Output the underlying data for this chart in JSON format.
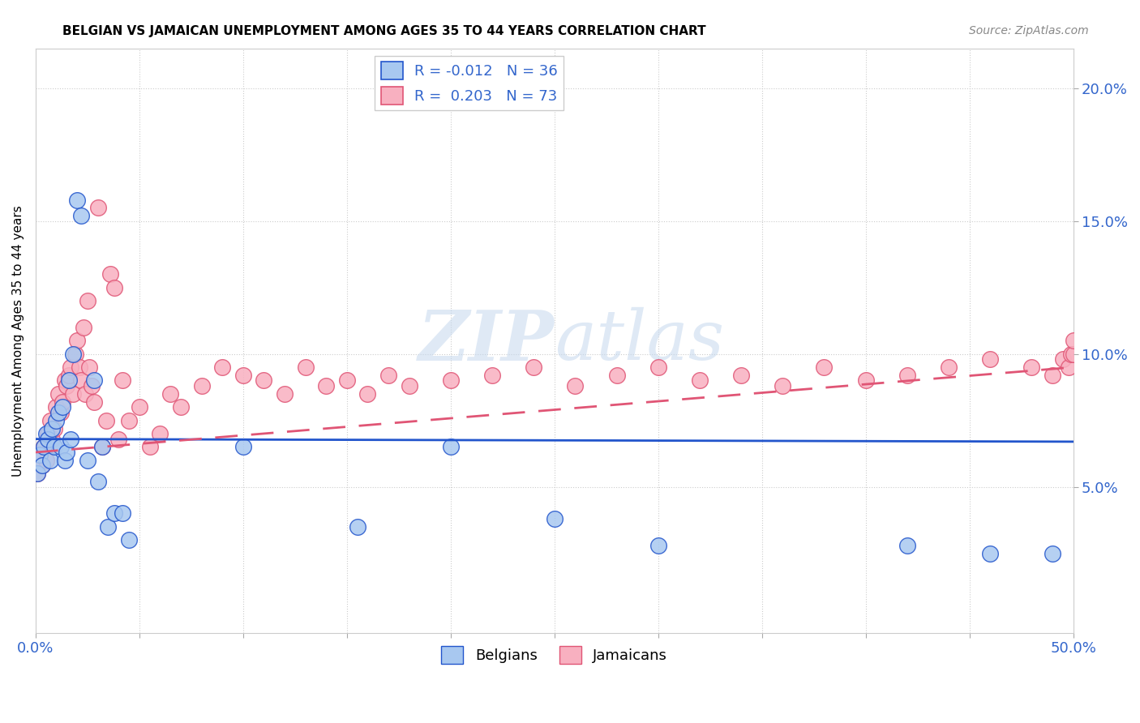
{
  "title": "BELGIAN VS JAMAICAN UNEMPLOYMENT AMONG AGES 35 TO 44 YEARS CORRELATION CHART",
  "source": "Source: ZipAtlas.com",
  "ylabel": "Unemployment Among Ages 35 to 44 years",
  "legend_belgian_R": "-0.012",
  "legend_belgian_N": "36",
  "legend_jamaican_R": "0.203",
  "legend_jamaican_N": "73",
  "belgian_color": "#A8C8F0",
  "jamaican_color": "#F8B0C0",
  "trendline_belgian_color": "#2255CC",
  "trendline_jamaican_color": "#E05575",
  "watermark_zip": "ZIP",
  "watermark_atlas": "atlas",
  "xlim": [
    0.0,
    0.5
  ],
  "ylim": [
    -0.005,
    0.215
  ],
  "xticks": [
    0.0,
    0.05,
    0.1,
    0.15,
    0.2,
    0.25,
    0.3,
    0.35,
    0.4,
    0.45,
    0.5
  ],
  "yticks_right": [
    0.05,
    0.1,
    0.15,
    0.2
  ],
  "belgian_x": [
    0.001,
    0.002,
    0.003,
    0.004,
    0.005,
    0.006,
    0.007,
    0.008,
    0.009,
    0.01,
    0.011,
    0.012,
    0.013,
    0.014,
    0.015,
    0.016,
    0.017,
    0.018,
    0.02,
    0.022,
    0.025,
    0.028,
    0.03,
    0.032,
    0.035,
    0.038,
    0.042,
    0.045,
    0.1,
    0.155,
    0.2,
    0.25,
    0.3,
    0.42,
    0.46,
    0.49
  ],
  "belgian_y": [
    0.055,
    0.062,
    0.058,
    0.065,
    0.07,
    0.068,
    0.06,
    0.072,
    0.065,
    0.075,
    0.078,
    0.065,
    0.08,
    0.06,
    0.063,
    0.09,
    0.068,
    0.1,
    0.158,
    0.152,
    0.06,
    0.09,
    0.052,
    0.065,
    0.035,
    0.04,
    0.04,
    0.03,
    0.065,
    0.035,
    0.065,
    0.038,
    0.028,
    0.028,
    0.025,
    0.025
  ],
  "jamaican_x": [
    0.001,
    0.002,
    0.003,
    0.004,
    0.005,
    0.006,
    0.007,
    0.008,
    0.009,
    0.01,
    0.011,
    0.012,
    0.013,
    0.014,
    0.015,
    0.016,
    0.017,
    0.018,
    0.019,
    0.02,
    0.021,
    0.022,
    0.023,
    0.024,
    0.025,
    0.026,
    0.027,
    0.028,
    0.03,
    0.032,
    0.034,
    0.036,
    0.038,
    0.04,
    0.042,
    0.045,
    0.05,
    0.055,
    0.06,
    0.065,
    0.07,
    0.08,
    0.09,
    0.1,
    0.11,
    0.12,
    0.13,
    0.14,
    0.15,
    0.16,
    0.17,
    0.18,
    0.2,
    0.22,
    0.24,
    0.26,
    0.28,
    0.3,
    0.32,
    0.34,
    0.36,
    0.38,
    0.4,
    0.42,
    0.44,
    0.46,
    0.48,
    0.49,
    0.495,
    0.498,
    0.499,
    0.5,
    0.5
  ],
  "jamaican_y": [
    0.055,
    0.062,
    0.058,
    0.065,
    0.06,
    0.07,
    0.075,
    0.068,
    0.072,
    0.08,
    0.085,
    0.078,
    0.082,
    0.09,
    0.088,
    0.092,
    0.095,
    0.085,
    0.1,
    0.105,
    0.095,
    0.09,
    0.11,
    0.085,
    0.12,
    0.095,
    0.088,
    0.082,
    0.155,
    0.065,
    0.075,
    0.13,
    0.125,
    0.068,
    0.09,
    0.075,
    0.08,
    0.065,
    0.07,
    0.085,
    0.08,
    0.088,
    0.095,
    0.092,
    0.09,
    0.085,
    0.095,
    0.088,
    0.09,
    0.085,
    0.092,
    0.088,
    0.09,
    0.092,
    0.095,
    0.088,
    0.092,
    0.095,
    0.09,
    0.092,
    0.088,
    0.095,
    0.09,
    0.092,
    0.095,
    0.098,
    0.095,
    0.092,
    0.098,
    0.095,
    0.1,
    0.1,
    0.105
  ]
}
